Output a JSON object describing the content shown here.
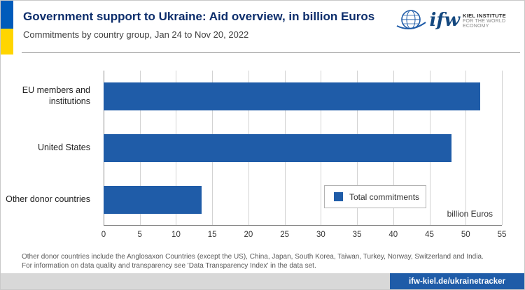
{
  "header": {
    "title": "Government support to Ukraine: Aid overview, in billion Euros",
    "subtitle": "Commitments by country group, Jan 24 to Nov 20, 2022",
    "logo": {
      "ifw": "ifw",
      "line1": "KIEL INSTITUTE",
      "line2": "FOR THE WORLD ECONOMY"
    }
  },
  "chart_data": {
    "type": "bar",
    "orientation": "horizontal",
    "categories": [
      "EU members and institutions",
      "United States",
      "Other donor countries"
    ],
    "values": [
      52,
      48,
      13.5
    ],
    "series_name": "Total commitments",
    "legend_label": "Total commitments",
    "legend_position": "inside lower right",
    "xlabel": "billion Euros",
    "xlim": [
      0,
      55
    ],
    "xticks": [
      0,
      5,
      10,
      15,
      20,
      25,
      30,
      35,
      40,
      45,
      50,
      55
    ],
    "grid": true
  },
  "footer": {
    "note_line1": "Other donor countries include the Anglosaxon Countries (except the US), China, Japan, South Korea, Taiwan, Turkey, Norway, Switzerland and India.",
    "note_line2": "For information on data quality and transparency see 'Data Transparency Index' in the data set.",
    "link": "ifw-kiel.de/ukrainetracker"
  },
  "colors": {
    "title": "#0c2d6b",
    "bar": "#1f5ca8",
    "flag_blue": "#005bbb",
    "flag_yellow": "#ffd500",
    "footer_bar": "#1f5ca8"
  }
}
